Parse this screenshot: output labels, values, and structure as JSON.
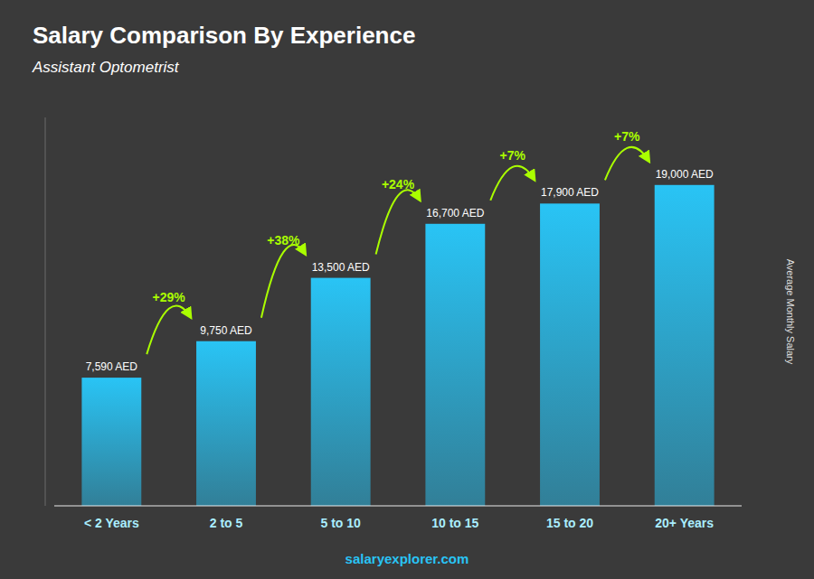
{
  "chart_data": {
    "type": "bar",
    "title": "Salary Comparison By Experience",
    "subtitle": "Assistant Optometrist",
    "ylabel": "Average Monthly Salary",
    "footer": "salaryexplorer.com",
    "categories": [
      "< 2 Years",
      "2 to 5",
      "5 to 10",
      "10 to 15",
      "15 to 20",
      "20+ Years"
    ],
    "values": [
      7590,
      9750,
      13500,
      16700,
      17900,
      19000
    ],
    "value_labels": [
      "7,590 AED",
      "9,750 AED",
      "13,500 AED",
      "16,700 AED",
      "17,900 AED",
      "19,000 AED"
    ],
    "data_labels": true,
    "annotations": [
      "+29%",
      "+38%",
      "+24%",
      "+7%",
      "+7%"
    ],
    "color": "#29c4f5",
    "ylim": [
      0,
      23000
    ],
    "grid": false,
    "tick_labels": false
  }
}
